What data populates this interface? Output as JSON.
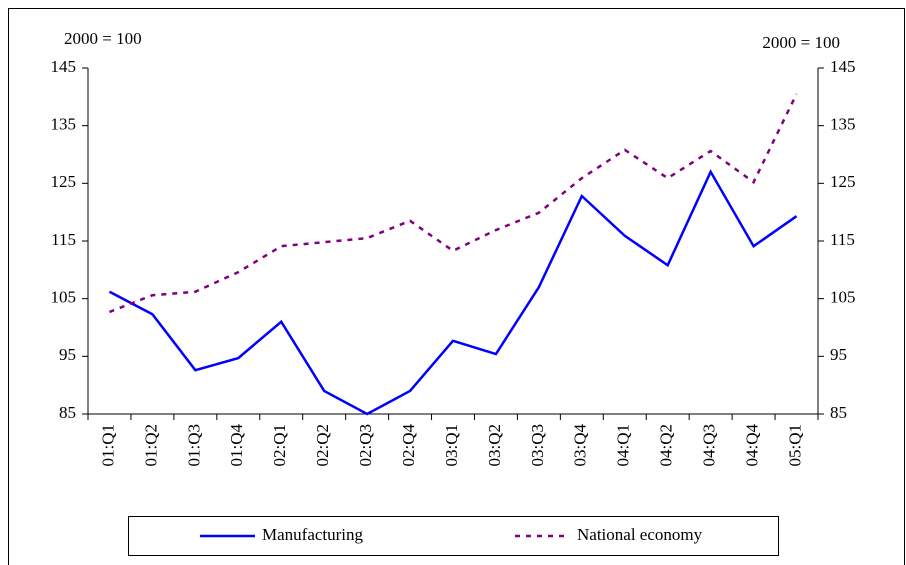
{
  "chart_data": {
    "type": "line",
    "y_label": "2000 = 100",
    "y2_label": "2000 = 100",
    "categories": [
      "01:Q1",
      "01:Q2",
      "01:Q3",
      "01:Q4",
      "02:Q1",
      "02:Q2",
      "02:Q3",
      "02:Q4",
      "03:Q1",
      "03:Q2",
      "03:Q3",
      "03:Q4",
      "04:Q1",
      "04:Q2",
      "04:Q3",
      "04:Q4",
      "05:Q1"
    ],
    "series": [
      {
        "name": "Manufacturing",
        "color": "#0000ff",
        "dash": false,
        "values": [
          106.2,
          102.3,
          92.6,
          94.7,
          101,
          89,
          85,
          89,
          97.7,
          95.4,
          107,
          122.8,
          115.9,
          110.8,
          127,
          114.1,
          119.3
        ]
      },
      {
        "name": "National economy",
        "color": "#800080",
        "dash": true,
        "values": [
          102.7,
          105.6,
          106.2,
          109.6,
          114.1,
          114.8,
          115.5,
          118.5,
          113.3,
          116.9,
          119.9,
          125.9,
          130.8,
          125.9,
          130.6,
          125.2,
          140.5
        ]
      }
    ],
    "ylim": [
      85,
      145
    ],
    "yticks": [
      85,
      95,
      105,
      115,
      125,
      135,
      145
    ],
    "y2lim": [
      85,
      145
    ],
    "y2ticks": [
      85,
      95,
      105,
      115,
      125,
      135,
      145
    ],
    "grid": false,
    "legend": "bottom"
  }
}
